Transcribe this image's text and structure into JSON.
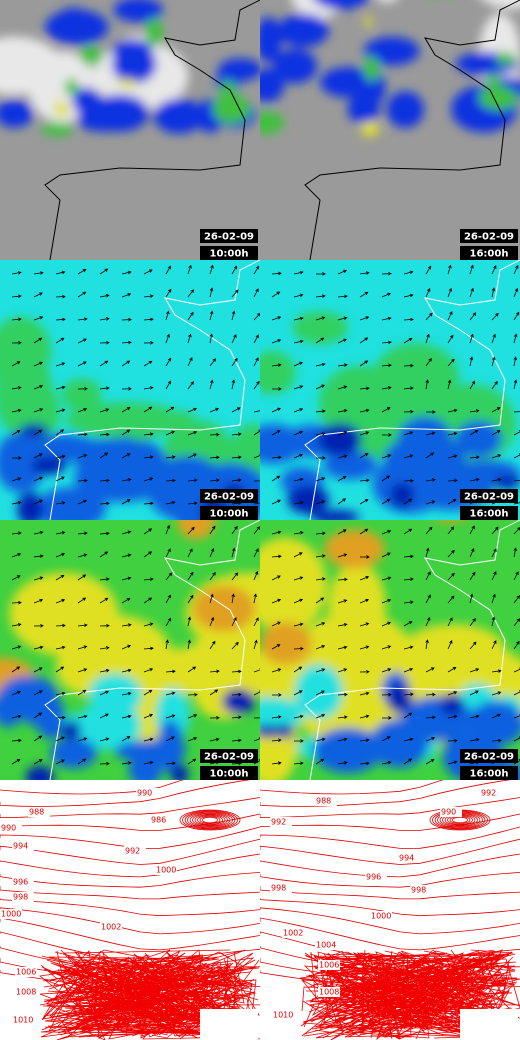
{
  "panels": [
    {
      "date": "26-02-09",
      "time": "10:00h"
    },
    {
      "date": "26-02-09",
      "time": "16:00h"
    },
    {
      "date": "26-02-09",
      "time": "10:00h"
    },
    {
      "date": "26-02-09",
      "time": "16:00h"
    },
    {
      "date": "26-02-09",
      "time": "10:00h"
    },
    {
      "date": "26-02-09",
      "time": "16:00h"
    }
  ],
  "pressure_maps": [
    {
      "contour_labels": [
        "990",
        "986",
        "988",
        "990",
        "992",
        "994",
        "996",
        "998",
        "1000",
        "1000",
        "1002",
        "1006",
        "1008",
        "1010"
      ]
    },
    {
      "contour_labels": [
        "992",
        "988",
        "990",
        "992",
        "994",
        "996",
        "998",
        "998",
        "1000",
        "1002",
        "1004",
        "1006",
        "1008",
        "1010"
      ]
    }
  ]
}
